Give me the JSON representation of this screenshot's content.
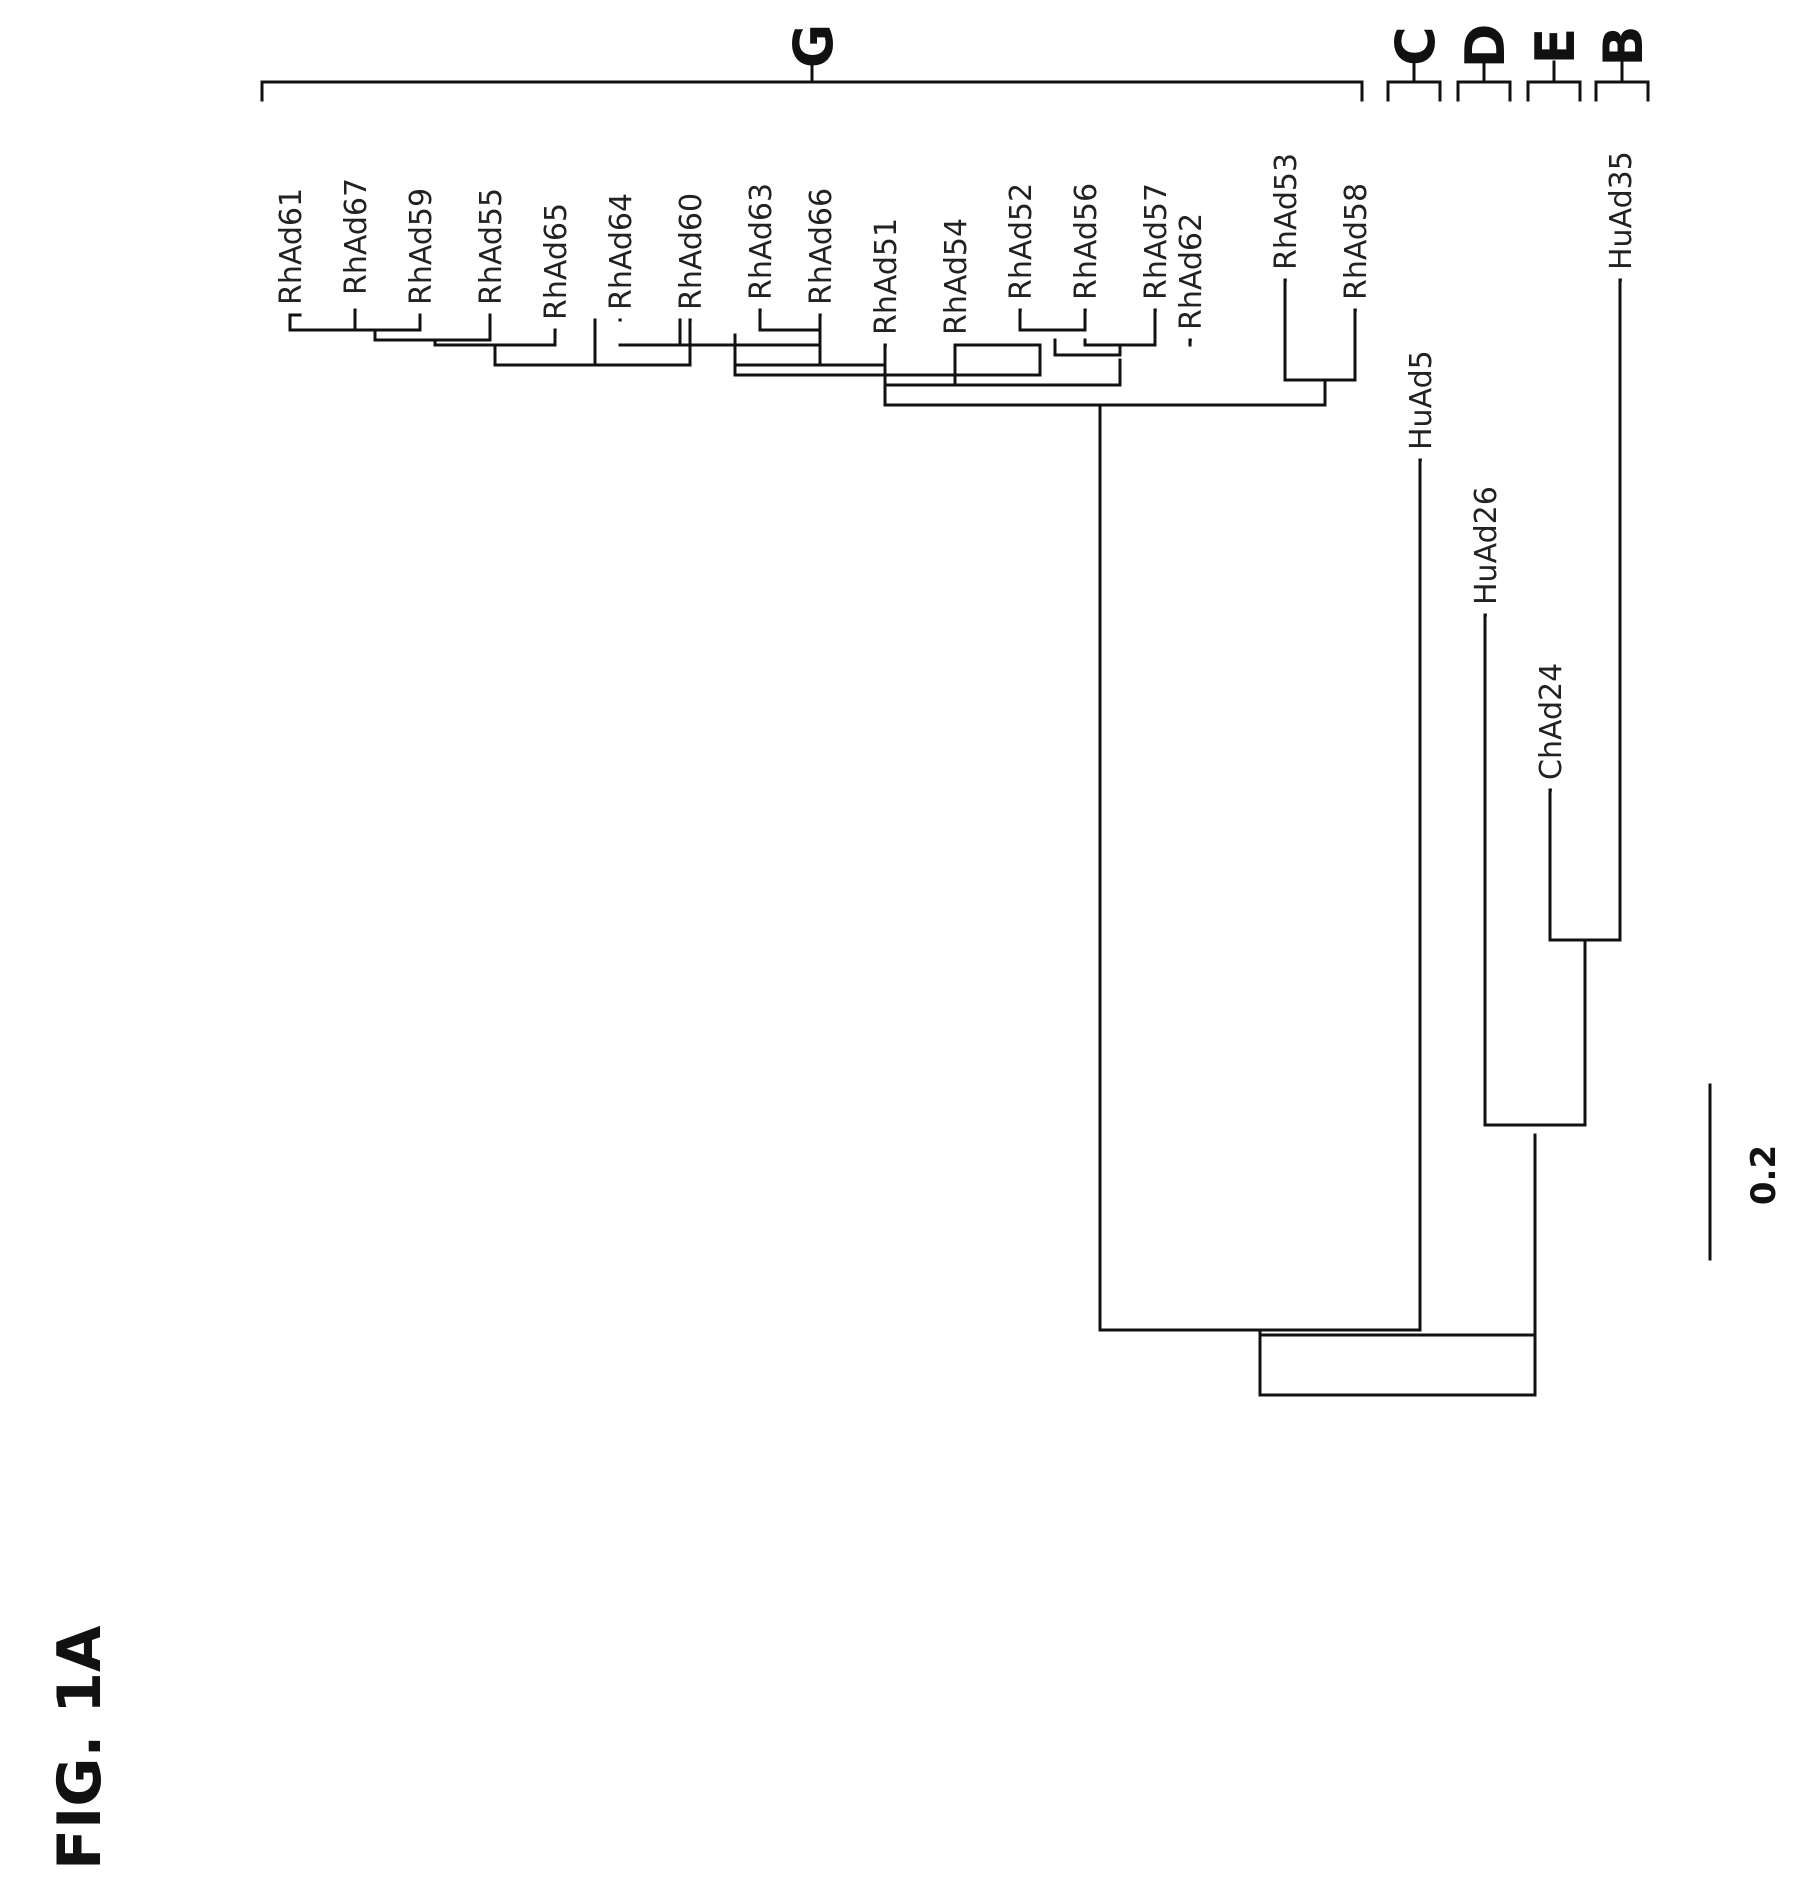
{
  "figure_label": "FIG. 1A",
  "scale_label": "0.2",
  "groups": {
    "G": "G",
    "C": "C",
    "D": "D",
    "E": "E",
    "B": "B"
  },
  "taxa": {
    "RhAd61": "RhAd61",
    "RhAd67": "RhAd67",
    "RhAd59": "RhAd59",
    "RhAd55": "RhAd55",
    "RhAd65": "RhAd65",
    "RhAd64": "RhAd64",
    "RhAd60": "RhAd60",
    "RhAd63": "RhAd63",
    "RhAd66": "RhAd66",
    "RhAd51": "RhAd51",
    "RhAd54": "RhAd54",
    "RhAd52": "RhAd52",
    "RhAd56": "RhAd56",
    "RhAd57": "RhAd57",
    "RhAd62": "RhAd62",
    "RhAd53": "RhAd53",
    "RhAd58": "RhAd58",
    "HuAd5": "HuAd5",
    "HuAd26": "HuAd26",
    "ChAd24": "ChAd24",
    "HuAd35": "HuAd35"
  }
}
